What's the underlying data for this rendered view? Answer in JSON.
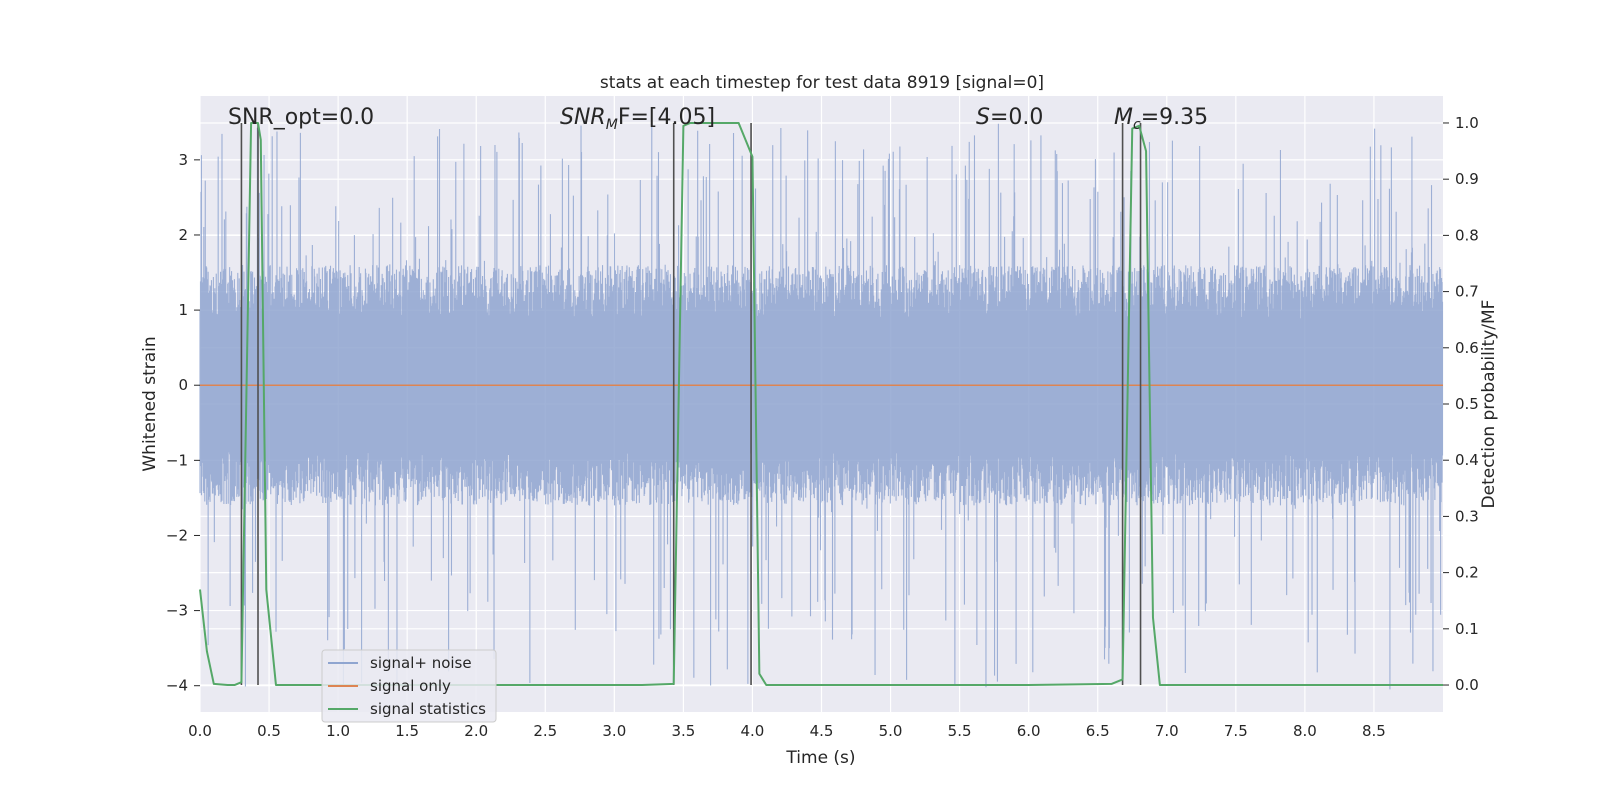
{
  "chart_data": {
    "type": "line",
    "title": "stats at each timestep for test data 8919 [signal=0]",
    "xlabel": "Time (s)",
    "ylabel": "Whitened strain",
    "y2label": "Detection probability/MF",
    "xlim": [
      0,
      9.0
    ],
    "ylim": [
      -4.35,
      3.85
    ],
    "y2lim": [
      -0.048,
      1.048
    ],
    "grid": true,
    "legend_position": "lower-left",
    "x_ticks": [
      "0.0",
      "0.5",
      "1.0",
      "1.5",
      "2.0",
      "2.5",
      "3.0",
      "3.5",
      "4.0",
      "4.5",
      "5.0",
      "5.5",
      "6.0",
      "6.5",
      "7.0",
      "7.5",
      "8.0",
      "8.5"
    ],
    "y_ticks": [
      "3",
      "2",
      "1",
      "0",
      "−1",
      "−2",
      "−3",
      "−4"
    ],
    "y2_ticks": [
      "1.0",
      "0.9",
      "0.8",
      "0.7",
      "0.6",
      "0.5",
      "0.4",
      "0.3",
      "0.2",
      "0.1",
      "0.0"
    ],
    "annotations": {
      "snr_opt": "SNR_opt=0.0",
      "snr_mf_main": "SNR",
      "snr_mf_sub": "M",
      "snr_mf_tail": "F=[4.05]",
      "s_main": "S",
      "s_tail": "=0.0",
      "mc_main": "M",
      "mc_sub": "c",
      "mc_tail": "=9.35"
    },
    "series": [
      {
        "name": "signal+ noise",
        "color": "#8fa5d0",
        "note_kind": "noise",
        "noise_envelope": {
          "typical_min": -1.6,
          "typical_max": 1.6,
          "peak_max": 3.5,
          "peak_min": -4.05
        }
      },
      {
        "name": "signal only",
        "color": "#dd8452",
        "x": [
          0,
          9.0
        ],
        "y": [
          0,
          0
        ]
      },
      {
        "name": "signal statistics",
        "color": "#55a868",
        "axis": "right",
        "x": [
          0.0,
          0.05,
          0.1,
          0.2,
          0.25,
          0.3,
          0.37,
          0.42,
          0.44,
          0.48,
          0.55,
          0.65,
          0.75,
          0.85,
          1.0,
          3.2,
          3.43,
          3.5,
          3.55,
          3.7,
          3.9,
          3.95,
          4.0,
          4.05,
          4.1,
          4.2,
          5.0,
          6.0,
          6.6,
          6.68,
          6.75,
          6.8,
          6.85,
          6.9,
          6.95,
          7.2,
          9.0
        ],
        "y": [
          0.17,
          0.06,
          0.002,
          0.0,
          0.0,
          0.005,
          1.0,
          1.0,
          0.97,
          0.17,
          0.0,
          0.0,
          0.0,
          0.0,
          0.0,
          0.0,
          0.002,
          0.995,
          1.0,
          1.0,
          1.0,
          0.97,
          0.94,
          0.02,
          0.0,
          0.0,
          0.0,
          0.0,
          0.002,
          0.01,
          0.99,
          0.995,
          0.95,
          0.12,
          0.0,
          0.0,
          0.0
        ]
      }
    ],
    "vlines": [
      0.3,
      0.42,
      3.43,
      3.99,
      6.68,
      6.81
    ],
    "vline_color": "#505050"
  }
}
